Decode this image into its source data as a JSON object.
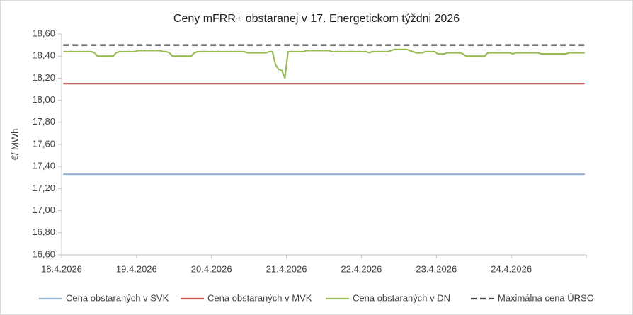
{
  "chart_data": {
    "type": "line",
    "title": "Ceny mFRR+ obstaranej v 17. Energetickom týždni 2026",
    "y_label": "€/ MWh",
    "legend": "bottom",
    "grid": false,
    "categories": [
      "18.4.2026",
      null,
      null,
      null,
      null,
      null,
      null,
      null,
      null,
      null,
      null,
      null,
      null,
      null,
      null,
      null,
      null,
      null,
      null,
      null,
      null,
      null,
      null,
      null,
      "19.4.2026",
      null,
      null,
      null,
      null,
      null,
      null,
      null,
      null,
      null,
      null,
      null,
      null,
      null,
      null,
      null,
      null,
      null,
      null,
      null,
      null,
      null,
      null,
      null,
      "20.4.2026",
      null,
      null,
      null,
      null,
      null,
      null,
      null,
      null,
      null,
      null,
      null,
      null,
      null,
      null,
      null,
      null,
      null,
      null,
      null,
      null,
      null,
      null,
      null,
      "21.4.2026",
      null,
      null,
      null,
      null,
      null,
      null,
      null,
      null,
      null,
      null,
      null,
      null,
      null,
      null,
      null,
      null,
      null,
      null,
      null,
      null,
      null,
      null,
      null,
      "22.4.2026",
      null,
      null,
      null,
      null,
      null,
      null,
      null,
      null,
      null,
      null,
      null,
      null,
      null,
      null,
      null,
      null,
      null,
      null,
      null,
      null,
      null,
      null,
      null,
      "23.4.2026",
      null,
      null,
      null,
      null,
      null,
      null,
      null,
      null,
      null,
      null,
      null,
      null,
      null,
      null,
      null,
      null,
      null,
      null,
      null,
      null,
      null,
      null,
      null,
      "24.4.2026",
      null,
      null,
      null,
      null,
      null,
      null,
      null,
      null,
      null,
      null,
      null,
      null,
      null,
      null,
      null,
      null,
      null,
      null,
      null,
      null,
      null,
      null,
      null
    ],
    "ylim": [
      16.6,
      18.6
    ],
    "yticks": [
      {
        "value": 16.6,
        "label": "16,60"
      },
      {
        "value": 16.8,
        "label": "16,80"
      },
      {
        "value": 17.0,
        "label": "17,00"
      },
      {
        "value": 17.2,
        "label": "17,20"
      },
      {
        "value": 17.4,
        "label": "17,40"
      },
      {
        "value": 17.6,
        "label": "17,60"
      },
      {
        "value": 17.8,
        "label": "17,80"
      },
      {
        "value": 18.0,
        "label": "18,00"
      },
      {
        "value": 18.2,
        "label": "18,20"
      },
      {
        "value": 18.4,
        "label": "18,40"
      },
      {
        "value": 18.6,
        "label": "18,60"
      }
    ],
    "series": [
      {
        "name": "Cena obstaraných v SVK",
        "color": "#95b3d7",
        "dashed": false,
        "values": [
          17.33,
          17.33,
          17.33,
          17.33,
          17.33,
          17.33,
          17.33,
          17.33,
          17.33,
          17.33,
          17.33,
          17.33,
          17.33,
          17.33,
          17.33,
          17.33,
          17.33,
          17.33,
          17.33,
          17.33,
          17.33,
          17.33,
          17.33,
          17.33,
          17.33,
          17.33,
          17.33,
          17.33,
          17.33,
          17.33,
          17.33,
          17.33,
          17.33,
          17.33,
          17.33,
          17.33,
          17.33,
          17.33,
          17.33,
          17.33,
          17.33,
          17.33,
          17.33,
          17.33,
          17.33,
          17.33,
          17.33,
          17.33,
          17.33,
          17.33,
          17.33,
          17.33,
          17.33,
          17.33,
          17.33,
          17.33,
          17.33,
          17.33,
          17.33,
          17.33,
          17.33,
          17.33,
          17.33,
          17.33,
          17.33,
          17.33,
          17.33,
          17.33,
          17.33,
          17.33,
          17.33,
          17.33,
          17.33,
          17.33,
          17.33,
          17.33,
          17.33,
          17.33,
          17.33,
          17.33,
          17.33,
          17.33,
          17.33,
          17.33,
          17.33,
          17.33,
          17.33,
          17.33,
          17.33,
          17.33,
          17.33,
          17.33,
          17.33,
          17.33,
          17.33,
          17.33,
          17.33,
          17.33,
          17.33,
          17.33,
          17.33,
          17.33,
          17.33,
          17.33,
          17.33,
          17.33,
          17.33,
          17.33,
          17.33,
          17.33,
          17.33,
          17.33,
          17.33,
          17.33,
          17.33,
          17.33,
          17.33,
          17.33,
          17.33,
          17.33,
          17.33,
          17.33,
          17.33,
          17.33,
          17.33,
          17.33,
          17.33,
          17.33,
          17.33,
          17.33,
          17.33,
          17.33,
          17.33,
          17.33,
          17.33,
          17.33,
          17.33,
          17.33,
          17.33,
          17.33,
          17.33,
          17.33,
          17.33,
          17.33,
          17.33,
          17.33,
          17.33,
          17.33,
          17.33,
          17.33,
          17.33,
          17.33,
          17.33,
          17.33,
          17.33,
          17.33,
          17.33,
          17.33,
          17.33,
          17.33,
          17.33,
          17.33,
          17.33,
          17.33,
          17.33,
          17.33,
          17.33,
          17.33
        ]
      },
      {
        "name": "Cena obstaraných v MVK",
        "color": "#c0504d",
        "dashed": false,
        "values": [
          18.15,
          18.15,
          18.15,
          18.15,
          18.15,
          18.15,
          18.15,
          18.15,
          18.15,
          18.15,
          18.15,
          18.15,
          18.15,
          18.15,
          18.15,
          18.15,
          18.15,
          18.15,
          18.15,
          18.15,
          18.15,
          18.15,
          18.15,
          18.15,
          18.15,
          18.15,
          18.15,
          18.15,
          18.15,
          18.15,
          18.15,
          18.15,
          18.15,
          18.15,
          18.15,
          18.15,
          18.15,
          18.15,
          18.15,
          18.15,
          18.15,
          18.15,
          18.15,
          18.15,
          18.15,
          18.15,
          18.15,
          18.15,
          18.15,
          18.15,
          18.15,
          18.15,
          18.15,
          18.15,
          18.15,
          18.15,
          18.15,
          18.15,
          18.15,
          18.15,
          18.15,
          18.15,
          18.15,
          18.15,
          18.15,
          18.15,
          18.15,
          18.15,
          18.15,
          18.15,
          18.15,
          18.15,
          18.15,
          18.15,
          18.15,
          18.15,
          18.15,
          18.15,
          18.15,
          18.15,
          18.15,
          18.15,
          18.15,
          18.15,
          18.15,
          18.15,
          18.15,
          18.15,
          18.15,
          18.15,
          18.15,
          18.15,
          18.15,
          18.15,
          18.15,
          18.15,
          18.15,
          18.15,
          18.15,
          18.15,
          18.15,
          18.15,
          18.15,
          18.15,
          18.15,
          18.15,
          18.15,
          18.15,
          18.15,
          18.15,
          18.15,
          18.15,
          18.15,
          18.15,
          18.15,
          18.15,
          18.15,
          18.15,
          18.15,
          18.15,
          18.15,
          18.15,
          18.15,
          18.15,
          18.15,
          18.15,
          18.15,
          18.15,
          18.15,
          18.15,
          18.15,
          18.15,
          18.15,
          18.15,
          18.15,
          18.15,
          18.15,
          18.15,
          18.15,
          18.15,
          18.15,
          18.15,
          18.15,
          18.15,
          18.15,
          18.15,
          18.15,
          18.15,
          18.15,
          18.15,
          18.15,
          18.15,
          18.15,
          18.15,
          18.15,
          18.15,
          18.15,
          18.15,
          18.15,
          18.15,
          18.15,
          18.15,
          18.15,
          18.15,
          18.15,
          18.15,
          18.15,
          18.15
        ]
      },
      {
        "name": "Cena obstaraných v DN",
        "color": "#9bbb59",
        "dashed": false,
        "values": [
          18.44,
          18.44,
          18.44,
          18.44,
          18.44,
          18.44,
          18.44,
          18.44,
          18.44,
          18.44,
          18.43,
          18.4,
          18.4,
          18.4,
          18.4,
          18.4,
          18.4,
          18.43,
          18.44,
          18.44,
          18.44,
          18.44,
          18.44,
          18.44,
          18.45,
          18.45,
          18.45,
          18.45,
          18.45,
          18.45,
          18.45,
          18.45,
          18.44,
          18.44,
          18.43,
          18.4,
          18.4,
          18.4,
          18.4,
          18.4,
          18.4,
          18.4,
          18.43,
          18.44,
          18.44,
          18.44,
          18.44,
          18.44,
          18.44,
          18.44,
          18.44,
          18.44,
          18.44,
          18.44,
          18.44,
          18.44,
          18.44,
          18.44,
          18.44,
          18.43,
          18.43,
          18.43,
          18.43,
          18.43,
          18.43,
          18.43,
          18.44,
          18.44,
          18.32,
          18.28,
          18.27,
          18.2,
          18.44,
          18.44,
          18.44,
          18.44,
          18.44,
          18.44,
          18.45,
          18.45,
          18.45,
          18.45,
          18.45,
          18.45,
          18.45,
          18.45,
          18.44,
          18.44,
          18.44,
          18.44,
          18.44,
          18.44,
          18.44,
          18.44,
          18.44,
          18.44,
          18.44,
          18.44,
          18.43,
          18.44,
          18.44,
          18.44,
          18.44,
          18.44,
          18.44,
          18.45,
          18.46,
          18.46,
          18.46,
          18.46,
          18.46,
          18.45,
          18.44,
          18.43,
          18.43,
          18.43,
          18.44,
          18.44,
          18.44,
          18.44,
          18.42,
          18.42,
          18.42,
          18.43,
          18.43,
          18.43,
          18.43,
          18.43,
          18.42,
          18.4,
          18.4,
          18.4,
          18.4,
          18.4,
          18.4,
          18.4,
          18.43,
          18.43,
          18.43,
          18.43,
          18.43,
          18.43,
          18.43,
          18.43,
          18.42,
          18.43,
          18.43,
          18.43,
          18.43,
          18.43,
          18.43,
          18.43,
          18.43,
          18.42,
          18.42,
          18.42,
          18.42,
          18.42,
          18.42,
          18.42,
          18.42,
          18.42,
          18.43,
          18.43,
          18.43,
          18.43,
          18.43,
          18.43
        ]
      },
      {
        "name": "Maximálna cena ÚRSO",
        "color": "#404040",
        "dashed": true,
        "values": [
          18.5,
          18.5,
          18.5,
          18.5,
          18.5,
          18.5,
          18.5,
          18.5,
          18.5,
          18.5,
          18.5,
          18.5,
          18.5,
          18.5,
          18.5,
          18.5,
          18.5,
          18.5,
          18.5,
          18.5,
          18.5,
          18.5,
          18.5,
          18.5,
          18.5,
          18.5,
          18.5,
          18.5,
          18.5,
          18.5,
          18.5,
          18.5,
          18.5,
          18.5,
          18.5,
          18.5,
          18.5,
          18.5,
          18.5,
          18.5,
          18.5,
          18.5,
          18.5,
          18.5,
          18.5,
          18.5,
          18.5,
          18.5,
          18.5,
          18.5,
          18.5,
          18.5,
          18.5,
          18.5,
          18.5,
          18.5,
          18.5,
          18.5,
          18.5,
          18.5,
          18.5,
          18.5,
          18.5,
          18.5,
          18.5,
          18.5,
          18.5,
          18.5,
          18.5,
          18.5,
          18.5,
          18.5,
          18.5,
          18.5,
          18.5,
          18.5,
          18.5,
          18.5,
          18.5,
          18.5,
          18.5,
          18.5,
          18.5,
          18.5,
          18.5,
          18.5,
          18.5,
          18.5,
          18.5,
          18.5,
          18.5,
          18.5,
          18.5,
          18.5,
          18.5,
          18.5,
          18.5,
          18.5,
          18.5,
          18.5,
          18.5,
          18.5,
          18.5,
          18.5,
          18.5,
          18.5,
          18.5,
          18.5,
          18.5,
          18.5,
          18.5,
          18.5,
          18.5,
          18.5,
          18.5,
          18.5,
          18.5,
          18.5,
          18.5,
          18.5,
          18.5,
          18.5,
          18.5,
          18.5,
          18.5,
          18.5,
          18.5,
          18.5,
          18.5,
          18.5,
          18.5,
          18.5,
          18.5,
          18.5,
          18.5,
          18.5,
          18.5,
          18.5,
          18.5,
          18.5,
          18.5,
          18.5,
          18.5,
          18.5,
          18.5,
          18.5,
          18.5,
          18.5,
          18.5,
          18.5,
          18.5,
          18.5,
          18.5,
          18.5,
          18.5,
          18.5,
          18.5,
          18.5,
          18.5,
          18.5,
          18.5,
          18.5,
          18.5,
          18.5,
          18.5,
          18.5,
          18.5,
          18.5
        ]
      }
    ]
  }
}
